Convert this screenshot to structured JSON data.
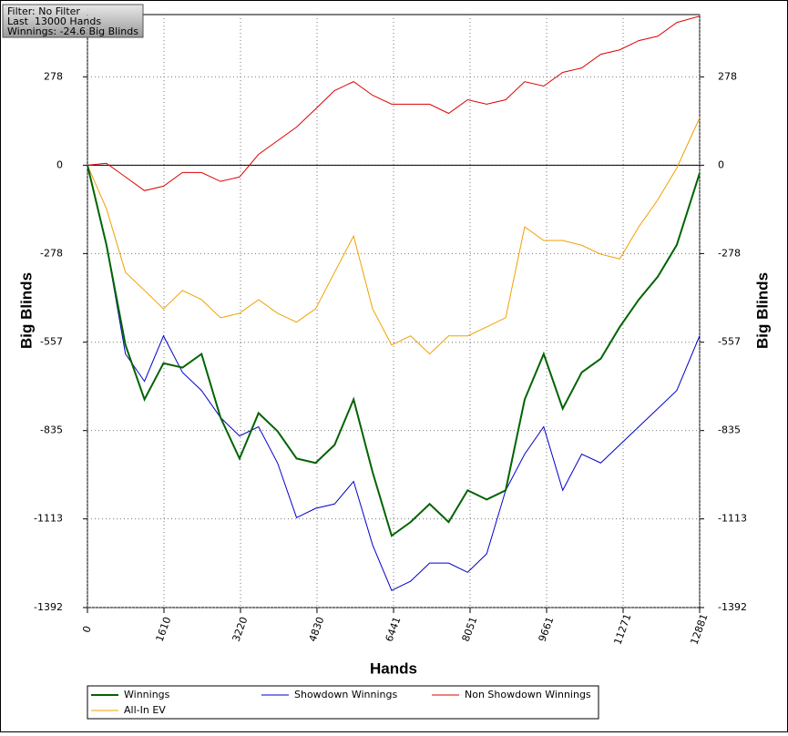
{
  "info": {
    "lines": [
      "Filter: No Filter",
      "Last  13000 Hands",
      "Winnings: -24.6 Big Blinds"
    ]
  },
  "chart_data": {
    "type": "line",
    "ylabel": "Big Blinds",
    "xlabel": "Hands",
    "xlim": [
      0,
      12881
    ],
    "ylim": [
      -1392,
      474
    ],
    "xticks": [
      0,
      1610,
      3220,
      4830,
      6441,
      8051,
      9661,
      11271,
      12881
    ],
    "yticks": [
      278,
      0,
      -278,
      -557,
      -835,
      -1113,
      -1392
    ],
    "grid": true,
    "zero_line": true,
    "x": [
      0,
      400,
      800,
      1200,
      1600,
      2000,
      2400,
      2800,
      3200,
      3600,
      4000,
      4400,
      4800,
      5200,
      5600,
      6000,
      6400,
      6800,
      7200,
      7600,
      8000,
      8400,
      8800,
      9200,
      9600,
      10000,
      10400,
      10800,
      11200,
      11600,
      12000,
      12400,
      12881
    ],
    "series": [
      {
        "name": "Winnings",
        "color": "#006400",
        "values": [
          0,
          -251,
          -566,
          -737,
          -623,
          -637,
          -594,
          -794,
          -923,
          -780,
          -837,
          -923,
          -937,
          -880,
          -737,
          -966,
          -1166,
          -1123,
          -1066,
          -1123,
          -1023,
          -1052,
          -1023,
          -737,
          -594,
          -766,
          -652,
          -609,
          -509,
          -423,
          -351,
          -251,
          -25
        ]
      },
      {
        "name": "Showdown Winnings",
        "color": "#0000cc",
        "values": [
          0,
          -251,
          -594,
          -680,
          -537,
          -652,
          -709,
          -794,
          -852,
          -823,
          -937,
          -1109,
          -1080,
          -1066,
          -995,
          -1195,
          -1338,
          -1309,
          -1252,
          -1252,
          -1281,
          -1223,
          -1023,
          -909,
          -823,
          -1023,
          -909,
          -937,
          -880,
          -823,
          -766,
          -709,
          -537
        ]
      },
      {
        "name": "Non Showdown Winnings",
        "color": "#dd0000",
        "values": [
          0,
          6,
          -37,
          -80,
          -66,
          -23,
          -23,
          -51,
          -37,
          34,
          77,
          120,
          177,
          235,
          263,
          220,
          192,
          192,
          192,
          163,
          206,
          192,
          206,
          263,
          249,
          292,
          306,
          349,
          363,
          392,
          406,
          449,
          469
        ]
      },
      {
        "name": "All-In EV",
        "color": "#f0a000",
        "values": [
          0,
          -137,
          -337,
          -394,
          -452,
          -394,
          -423,
          -480,
          -466,
          -423,
          -466,
          -494,
          -452,
          -337,
          -223,
          -452,
          -566,
          -537,
          -594,
          -537,
          -537,
          -509,
          -480,
          -194,
          -237,
          -237,
          -252,
          -280,
          -295,
          -194,
          -109,
          -9,
          149
        ]
      }
    ]
  }
}
